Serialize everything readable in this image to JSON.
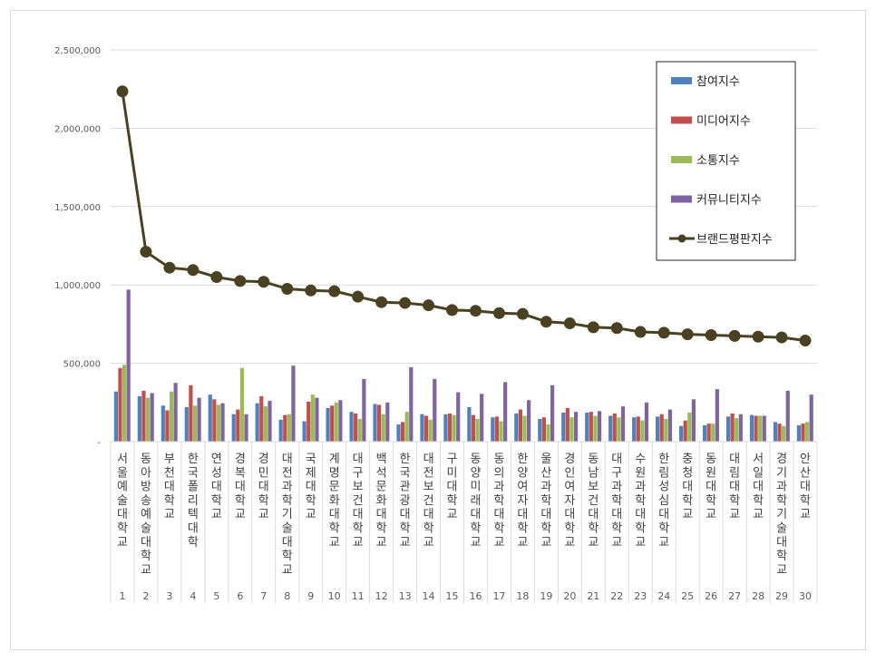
{
  "chart_data": {
    "type": "bar",
    "ylim": [
      0,
      2500000
    ],
    "yticks": [
      0,
      500000,
      1000000,
      1500000,
      2000000,
      2500000
    ],
    "ytick_labels": [
      "-",
      "500,000",
      "1,000,000",
      "1,500,000",
      "2,000,000",
      "2,500,000"
    ],
    "grid": true,
    "legend_position": "top-right",
    "ranks": [
      "1",
      "2",
      "3",
      "4",
      "5",
      "6",
      "7",
      "8",
      "9",
      "10",
      "11",
      "12",
      "13",
      "14",
      "15",
      "16",
      "17",
      "18",
      "19",
      "20",
      "21",
      "22",
      "23",
      "24",
      "25",
      "26",
      "27",
      "28",
      "29",
      "30"
    ],
    "categories": [
      "서울예술대학교",
      "동아방송예술대학교",
      "부천대학교",
      "한국폴리텍대학",
      "연성대학교",
      "경복대학교",
      "경민대학교",
      "대전과학기술대학교",
      "국제대학교",
      "계명문화대학교",
      "대구보건대학교",
      "백석문화대학교",
      "한국관광대학교",
      "대전보건대학교",
      "구미대학교",
      "동양미래대학교",
      "동의과학대학교",
      "한양여자대학교",
      "울산과학대학교",
      "경인여자대학교",
      "동남보건대학교",
      "대구과학대학교",
      "수원과학대학교",
      "한림성심대학교",
      "충청대학교",
      "동원대학교",
      "대림대학교",
      "서일대학교",
      "경기과학기술대학교",
      "안산대학교"
    ],
    "series": [
      {
        "name": "참여지수",
        "color": "#4f81bd",
        "kind": "bar",
        "values": [
          320000,
          290000,
          230000,
          220000,
          300000,
          175000,
          245000,
          140000,
          130000,
          215000,
          190000,
          240000,
          110000,
          175000,
          175000,
          220000,
          155000,
          180000,
          145000,
          185000,
          185000,
          165000,
          155000,
          160000,
          100000,
          105000,
          160000,
          170000,
          125000,
          105000
        ]
      },
      {
        "name": "미디어지수",
        "color": "#c0504d",
        "kind": "bar",
        "values": [
          470000,
          325000,
          200000,
          360000,
          270000,
          205000,
          290000,
          170000,
          255000,
          230000,
          180000,
          235000,
          125000,
          165000,
          180000,
          170000,
          160000,
          205000,
          155000,
          215000,
          190000,
          180000,
          160000,
          175000,
          135000,
          115000,
          180000,
          165000,
          115000,
          115000
        ]
      },
      {
        "name": "소통지수",
        "color": "#9bbb59",
        "kind": "bar",
        "values": [
          490000,
          280000,
          320000,
          230000,
          235000,
          470000,
          225000,
          175000,
          300000,
          250000,
          145000,
          175000,
          190000,
          140000,
          170000,
          145000,
          130000,
          165000,
          110000,
          155000,
          165000,
          155000,
          135000,
          145000,
          185000,
          115000,
          150000,
          165000,
          100000,
          125000
        ]
      },
      {
        "name": "커뮤니티지수",
        "color": "#8064a2",
        "kind": "bar",
        "values": [
          970000,
          310000,
          375000,
          280000,
          245000,
          175000,
          260000,
          485000,
          280000,
          265000,
          400000,
          250000,
          475000,
          400000,
          315000,
          305000,
          380000,
          265000,
          360000,
          190000,
          195000,
          225000,
          250000,
          205000,
          270000,
          335000,
          175000,
          165000,
          325000,
          300000
        ]
      },
      {
        "name": "브랜드평판지수",
        "color": "#4a4122",
        "kind": "line",
        "values": [
          2235000,
          1212000,
          1110000,
          1095000,
          1050000,
          1025000,
          1020000,
          975000,
          965000,
          960000,
          925000,
          890000,
          885000,
          870000,
          840000,
          835000,
          820000,
          815000,
          765000,
          755000,
          730000,
          725000,
          700000,
          695000,
          685000,
          680000,
          675000,
          670000,
          665000,
          645000
        ]
      }
    ]
  }
}
